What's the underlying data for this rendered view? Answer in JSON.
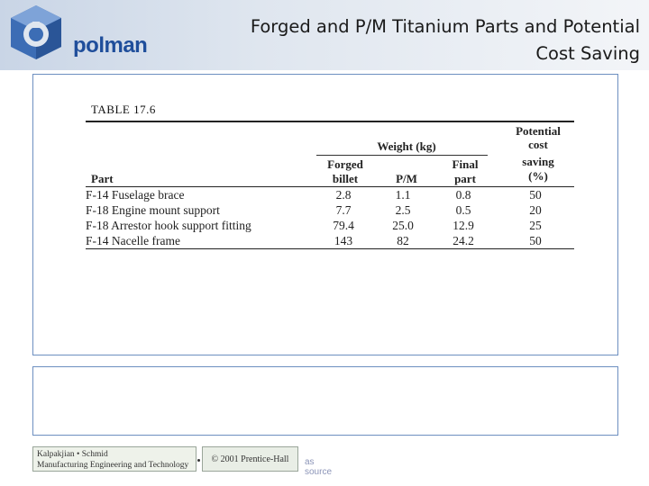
{
  "header": {
    "logo_text": "polman",
    "title": "Forged and P/M Titanium Parts and Potential Cost Saving"
  },
  "table": {
    "caption": "TABLE 17.6",
    "header": {
      "potential_cost": [
        "Potential",
        "cost",
        "saving"
      ],
      "saving_unit": "(%)",
      "weight_group": "Weight (kg)",
      "forged": [
        "Forged",
        "billet"
      ],
      "pm": "P/M",
      "final": [
        "Final",
        "part"
      ],
      "part": "Part"
    },
    "rows": [
      {
        "part": "F-14 Fuselage brace",
        "forged": "2.8",
        "pm": "1.1",
        "final": "0.8",
        "saving": "50"
      },
      {
        "part": "F-18 Engine mount support",
        "forged": "7.7",
        "pm": "2.5",
        "final": "0.5",
        "saving": "20"
      },
      {
        "part": "F-18 Arrestor hook support fitting",
        "forged": "79.4",
        "pm": "25.0",
        "final": "12.9",
        "saving": "25"
      },
      {
        "part": "F-14 Nacelle frame",
        "forged": "143",
        "pm": "82",
        "final": "24.2",
        "saving": "50"
      }
    ]
  },
  "footer": {
    "book_line1": "Kalpakjian • Schmid",
    "book_line2": "Manufacturing Engineering and Technology",
    "copyright": "© 2001 Prentice-Hall",
    "source": "as source"
  },
  "colors": {
    "header_band": "#c9d5e6",
    "logo_blue": "#1f4e9b",
    "frame_border": "#6d8fc0"
  }
}
